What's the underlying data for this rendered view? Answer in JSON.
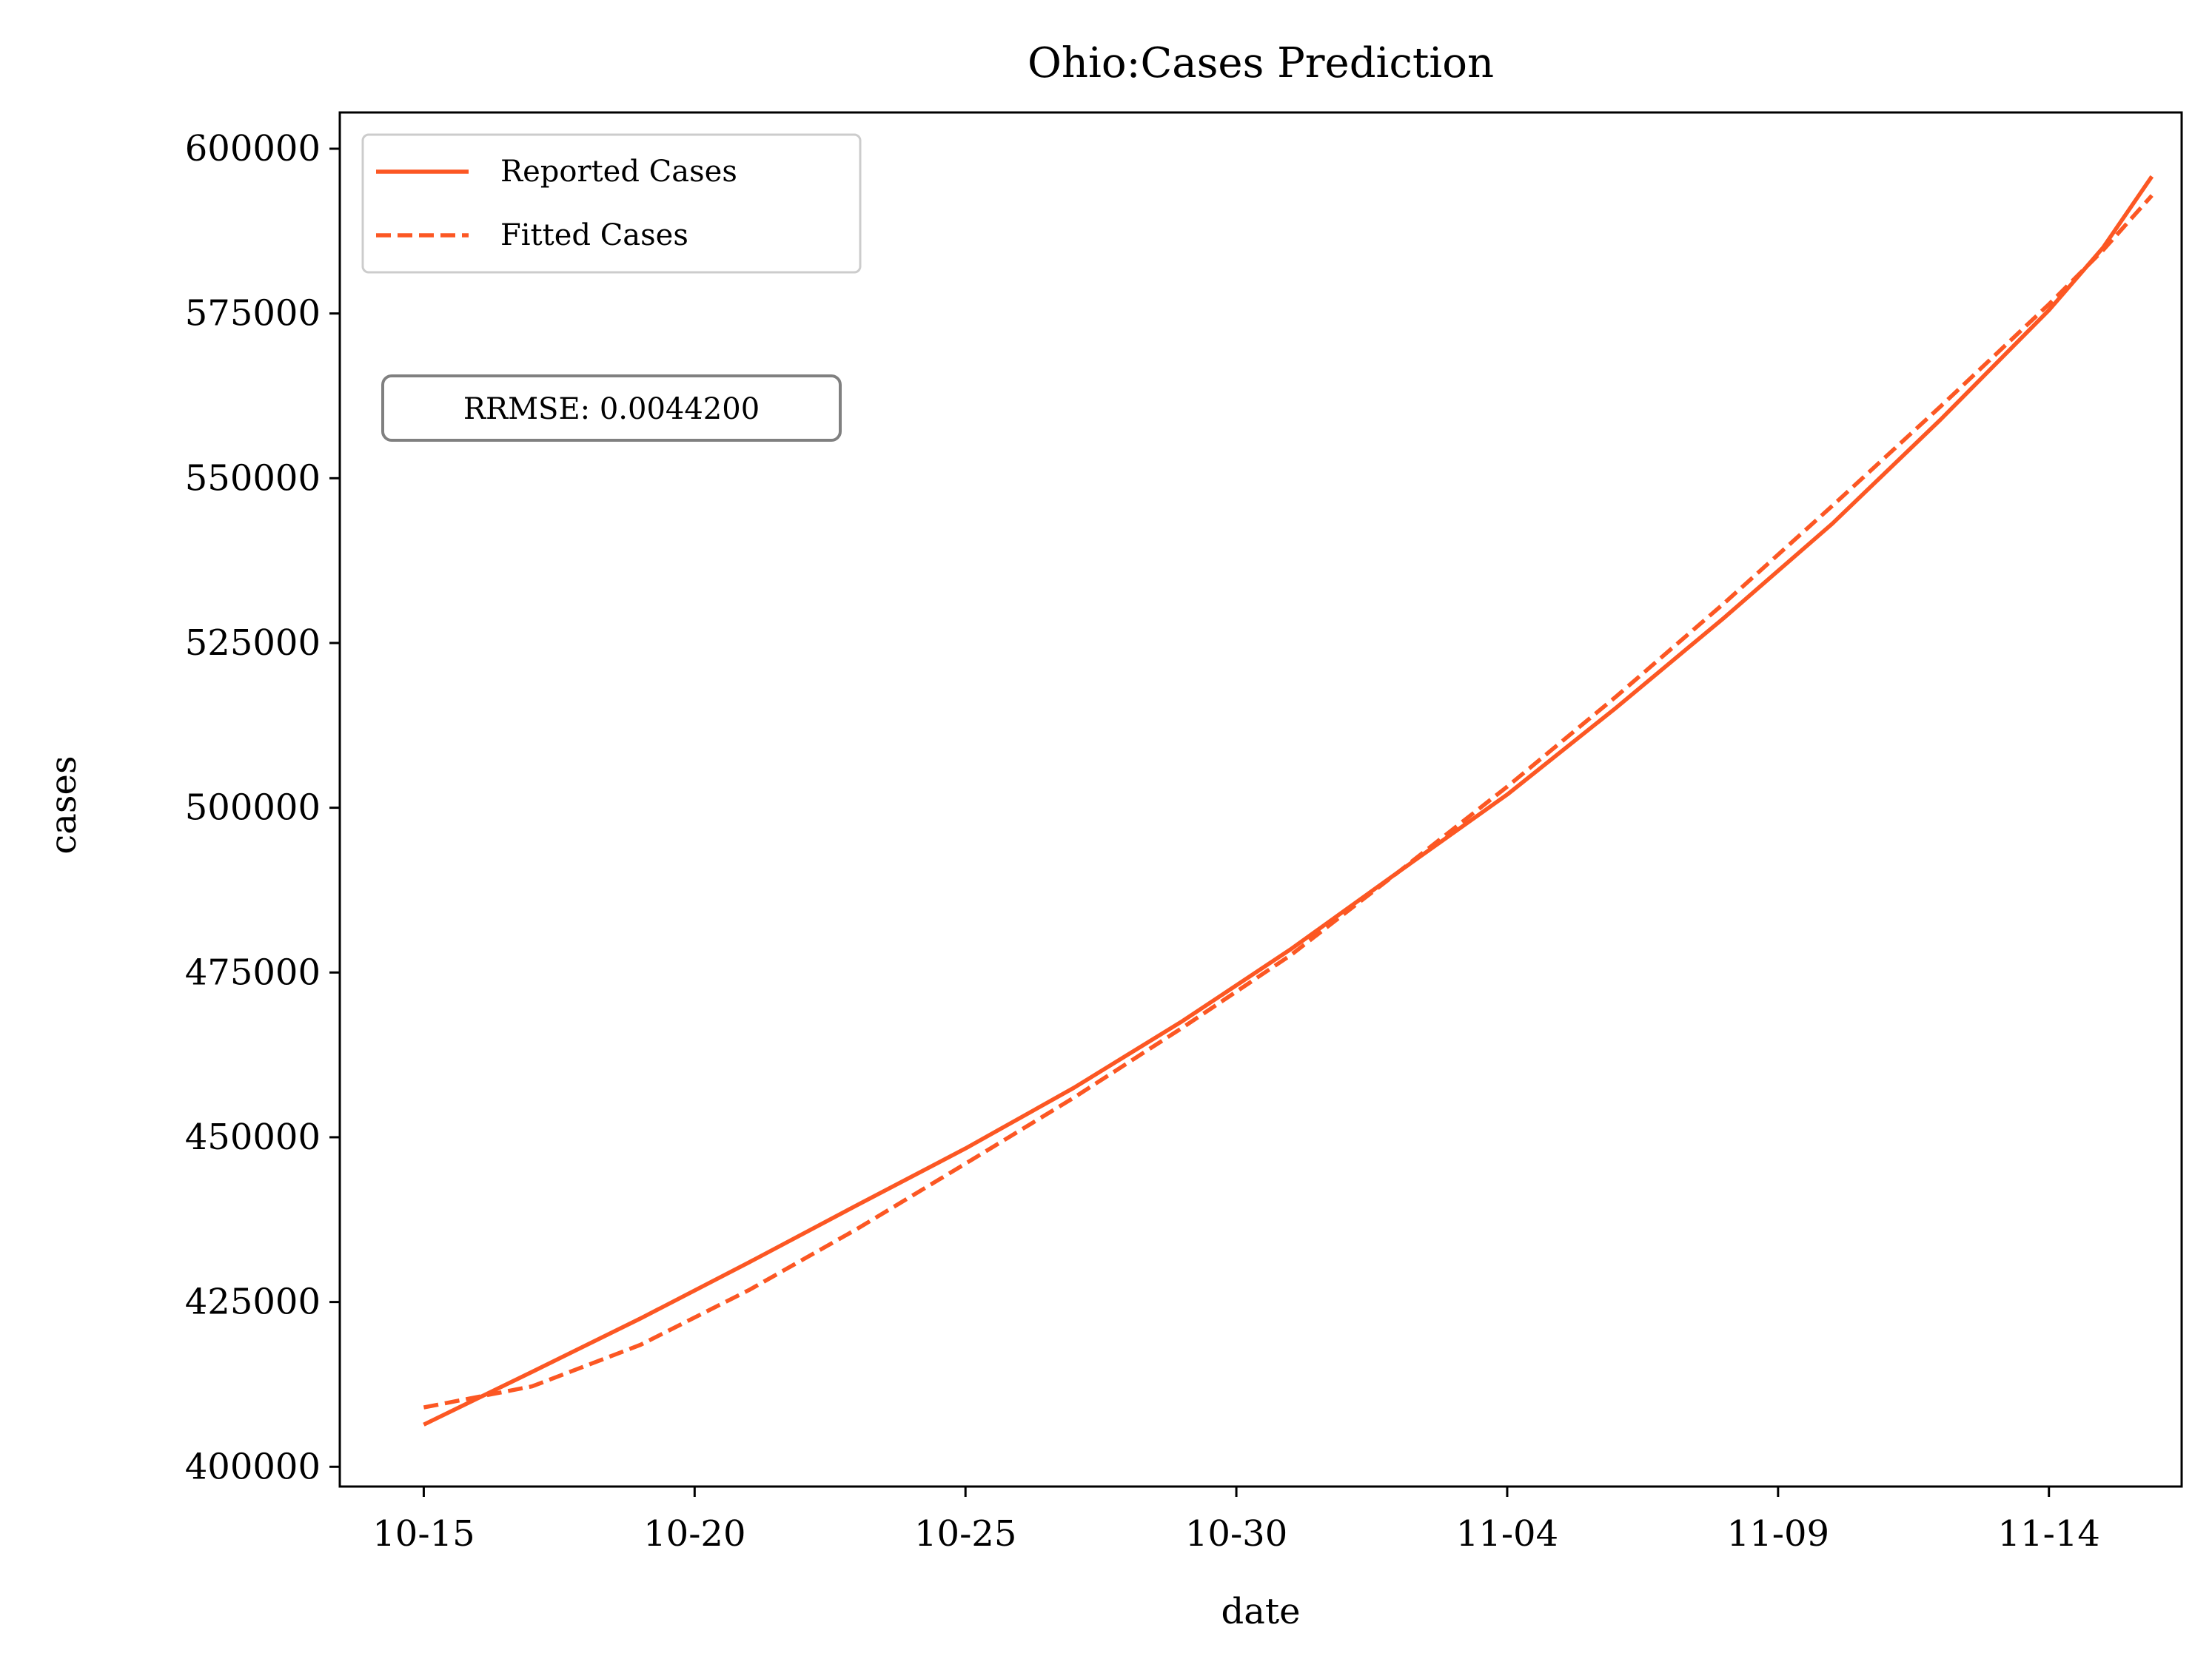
{
  "chart_data": {
    "type": "line",
    "title": "Ohio:Cases Prediction",
    "xlabel": "date",
    "ylabel": "cases",
    "x_ticks": [
      "10-15",
      "10-20",
      "10-25",
      "10-30",
      "11-04",
      "11-09",
      "11-14"
    ],
    "y_ticks": [
      400000,
      425000,
      450000,
      475000,
      500000,
      525000,
      550000,
      575000,
      600000
    ],
    "x_range_days": [
      -1.55,
      32.45
    ],
    "ylim": [
      397000,
      605500
    ],
    "grid": false,
    "legend_position": "top-left",
    "annotation": "RRMSE: 0.0044200",
    "series": [
      {
        "name": "Reported Cases",
        "style": "solid",
        "color": "#fc5723",
        "points": [
          [
            0,
            406400
          ],
          [
            2,
            414400
          ],
          [
            4,
            422500
          ],
          [
            6,
            431000
          ],
          [
            8,
            439700
          ],
          [
            10,
            448300
          ],
          [
            12,
            457500
          ],
          [
            14,
            467600
          ],
          [
            16,
            478500
          ],
          [
            18,
            490300
          ],
          [
            20,
            502000
          ],
          [
            22,
            515100
          ],
          [
            24,
            528800
          ],
          [
            26,
            543100
          ],
          [
            28,
            558900
          ],
          [
            30,
            575500
          ],
          [
            31,
            585000
          ],
          [
            31.9,
            595800
          ]
        ]
      },
      {
        "name": "Fitted Cases",
        "style": "dashed",
        "color": "#fc5723",
        "points": [
          [
            0,
            409000
          ],
          [
            2,
            412200
          ],
          [
            4,
            418500
          ],
          [
            6,
            426800
          ],
          [
            8,
            436100
          ],
          [
            10,
            446000
          ],
          [
            12,
            456000
          ],
          [
            14,
            466600
          ],
          [
            16,
            477600
          ],
          [
            18,
            490300
          ],
          [
            20,
            503200
          ],
          [
            22,
            516800
          ],
          [
            24,
            531000
          ],
          [
            26,
            545800
          ],
          [
            28,
            560900
          ],
          [
            30,
            576400
          ],
          [
            31,
            584600
          ],
          [
            31.9,
            592900
          ]
        ]
      }
    ]
  }
}
